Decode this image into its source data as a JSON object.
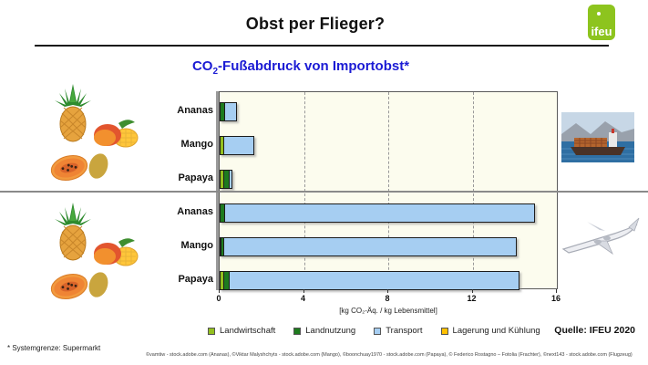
{
  "header": {
    "title": "Obst per Flieger?",
    "logo_text": "ifeu"
  },
  "chart_title": {
    "prefix": "CO",
    "subscript": "2",
    "suffix": "-Fußabdruck von Importobst*"
  },
  "chart_data": {
    "type": "bar",
    "orientation": "horizontal",
    "title": "CO2-Fußabdruck von Importobst*",
    "xlabel": "[kg CO₂-Äq. / kg Lebensmittel]",
    "xlim": [
      0,
      16
    ],
    "x_ticks": [
      0,
      4,
      8,
      12,
      16
    ],
    "gridlines": [
      4,
      8,
      12
    ],
    "grid_style": "dashed-vertical",
    "legend": [
      "Landwirtschaft",
      "Landnutzung",
      "Transport",
      "Lagerung und Kühlung"
    ],
    "legend_position": "bottom",
    "colors": {
      "Landwirtschaft": "#93C01F",
      "Landnutzung": "#1E7B1E",
      "Transport": "#A6CEF2",
      "Lagerung und Kühlung": "#FFC000",
      "title": "#1B1BD4",
      "plot_background": "#FCFCEE",
      "logo_background": "#8DC41E"
    },
    "groups": [
      {
        "icon": "container-ship",
        "rows": [
          {
            "category": "Ananas",
            "values": {
              "Landwirtschaft": 0,
              "Landnutzung": 0.25,
              "Transport": 0.6,
              "Lagerung und Kühlung": 0
            },
            "total": 0.85
          },
          {
            "category": "Mango",
            "values": {
              "Landwirtschaft": 0.2,
              "Landnutzung": 0,
              "Transport": 1.5,
              "Lagerung und Kühlung": 0
            },
            "total": 1.7
          },
          {
            "category": "Papaya",
            "values": {
              "Landwirtschaft": 0.2,
              "Landnutzung": 0.3,
              "Transport": 0.2,
              "Lagerung und Kühlung": 0
            },
            "total": 0.7
          }
        ]
      },
      {
        "icon": "airplane",
        "rows": [
          {
            "category": "Ananas",
            "values": {
              "Landwirtschaft": 0,
              "Landnutzung": 0.25,
              "Transport": 14.75,
              "Lagerung und Kühlung": 0
            },
            "total": 15.0
          },
          {
            "category": "Mango",
            "values": {
              "Landwirtschaft": 0.1,
              "Landnutzung": 0.15,
              "Transport": 13.95,
              "Lagerung und Kühlung": 0
            },
            "total": 14.2
          },
          {
            "category": "Papaya",
            "values": {
              "Landwirtschaft": 0.2,
              "Landnutzung": 0.3,
              "Transport": 13.8,
              "Lagerung und Kühlung": 0
            },
            "total": 14.3
          }
        ]
      }
    ]
  },
  "source": "Quelle: IFEU 2020",
  "footnote": "* Systemgrenze: Supermarkt",
  "credits": "©vamtiw - stock.adobe.com (Ananas), ©Viktar Malyshchyts - stock.adobe.com (Mango), ©boonchuay1970 - stock.adobe.com (Papaya), © Federico Rostagno – Fotolia (Frachter), ©next143 - stock.adobe.com (Flugzeug)"
}
